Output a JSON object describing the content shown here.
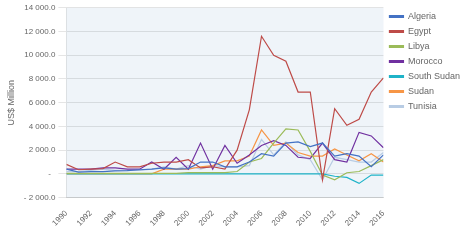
{
  "chart_data": {
    "type": "line",
    "x": [
      1990,
      1991,
      1992,
      1993,
      1994,
      1995,
      1996,
      1997,
      1998,
      1999,
      2000,
      2001,
      2002,
      2003,
      2004,
      2005,
      2006,
      2007,
      2008,
      2009,
      2010,
      2011,
      2012,
      2013,
      2014,
      2015,
      2016
    ],
    "series": [
      {
        "name": "Algeria",
        "color": "#4472c4",
        "values": [
          400,
          150,
          200,
          200,
          250,
          270,
          350,
          400,
          500,
          400,
          450,
          1000,
          1000,
          600,
          600,
          1000,
          1700,
          1500,
          2600,
          2700,
          2300,
          2600,
          1500,
          1700,
          1500,
          600,
          1600
        ]
      },
      {
        "name": "Egypt",
        "color": "#be4b48",
        "values": [
          800,
          350,
          400,
          450,
          1000,
          600,
          600,
          900,
          1000,
          1000,
          1200,
          500,
          600,
          400,
          2000,
          5400,
          11600,
          10000,
          9500,
          6900,
          6900,
          -500,
          5500,
          4100,
          4600,
          6900,
          8100
        ]
      },
      {
        "name": "Libya",
        "color": "#9bbb59",
        "values": [
          50,
          50,
          50,
          50,
          50,
          50,
          50,
          50,
          50,
          50,
          100,
          100,
          100,
          100,
          200,
          1000,
          1300,
          2600,
          3800,
          3700,
          1900,
          -100,
          -500,
          100,
          200,
          700,
          1200
        ]
      },
      {
        "name": "Morocco",
        "color": "#7030a0",
        "values": [
          400,
          400,
          400,
          500,
          500,
          400,
          400,
          1000,
          400,
          1400,
          400,
          2600,
          400,
          2400,
          900,
          1600,
          2400,
          2800,
          2400,
          1400,
          1300,
          2600,
          1200,
          1000,
          3500,
          3200,
          2200
        ]
      },
      {
        "name": "South Sudan",
        "color": "#1fb3c8",
        "values": [
          0,
          0,
          0,
          0,
          0,
          0,
          0,
          0,
          0,
          0,
          0,
          0,
          0,
          0,
          0,
          0,
          0,
          0,
          0,
          0,
          0,
          0,
          -200,
          -300,
          -800,
          -100,
          -100
        ]
      },
      {
        "name": "Sudan",
        "color": "#f79646",
        "values": [
          0,
          0,
          0,
          0,
          0,
          0,
          0,
          0,
          400,
          400,
          400,
          600,
          700,
          1100,
          1100,
          1500,
          3700,
          2400,
          2600,
          1800,
          1500,
          1500,
          2100,
          1600,
          1100,
          1700,
          1000
        ]
      },
      {
        "name": "Tunisia",
        "color": "#b8cce4",
        "values": [
          200,
          200,
          300,
          400,
          300,
          300,
          300,
          400,
          600,
          400,
          700,
          400,
          700,
          600,
          600,
          700,
          2900,
          1600,
          2700,
          1600,
          1200,
          -500,
          1400,
          1200,
          1000,
          1000,
          1800
        ]
      }
    ],
    "ylabel": "US$ Million",
    "xlim": [
      1990,
      2016
    ],
    "xticks": [
      1990,
      1992,
      1994,
      1996,
      1998,
      2000,
      2002,
      2004,
      2006,
      2008,
      2010,
      2012,
      2014,
      2016
    ],
    "ylim": [
      -2000,
      14000
    ],
    "yticks": [
      {
        "value": -2000,
        "label": "- 2 000.0"
      },
      {
        "value": 0,
        "label": "-  "
      },
      {
        "value": 2000,
        "label": "2 000.0"
      },
      {
        "value": 4000,
        "label": "4 000.0"
      },
      {
        "value": 6000,
        "label": "6 000.0"
      },
      {
        "value": 8000,
        "label": "8 000.0"
      },
      {
        "value": 10000,
        "label": "10 000.0"
      },
      {
        "value": 12000,
        "label": "12 000.0"
      },
      {
        "value": 14000,
        "label": "14 000.0"
      }
    ],
    "grid": true,
    "legend": "right"
  }
}
